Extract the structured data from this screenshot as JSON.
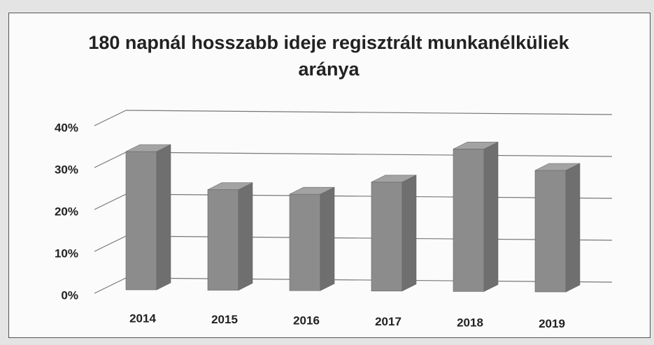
{
  "chart_data": {
    "type": "bar3d",
    "title": "180 napnál hosszabb ideje regisztrált munkanélküliek aránya",
    "categories": [
      "2014",
      "2015",
      "2016",
      "2017",
      "2018",
      "2019"
    ],
    "values": [
      33,
      24,
      23,
      26,
      34,
      29
    ],
    "color": "#8c8c8c",
    "ylim": [
      0,
      40
    ],
    "yticks": [
      {
        "value": 0,
        "label": "0%"
      },
      {
        "value": 10,
        "label": "10%"
      },
      {
        "value": 20,
        "label": "20%"
      },
      {
        "value": 30,
        "label": "30%"
      },
      {
        "value": 40,
        "label": "40%"
      }
    ],
    "grid": true
  }
}
